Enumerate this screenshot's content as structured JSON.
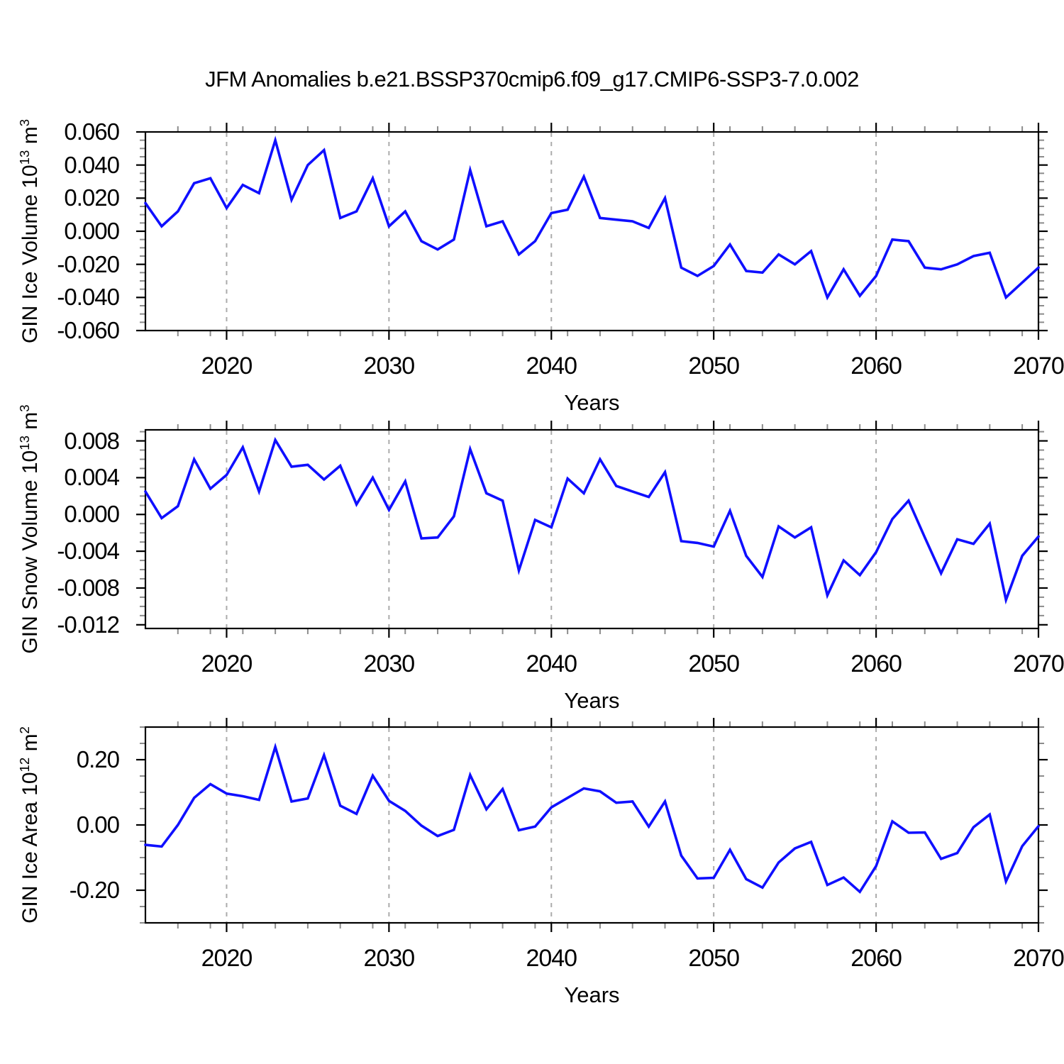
{
  "title": "JFM Anomalies b.e21.BSSP370cmip6.f09_g17.CMIP6-SSP3-7.0.002",
  "colors": {
    "line": "#0f0fff",
    "frame": "#000000",
    "gridline": "#ababab",
    "minor_tick": "#8c8c8c",
    "background": "#ffffff"
  },
  "chart_data": {
    "type": "line",
    "x_label": "Years",
    "x_range": [
      2015,
      2070
    ],
    "x_major_ticks": [
      2020,
      2030,
      2040,
      2050,
      2060,
      2070
    ],
    "x_minor_step": 2,
    "grid_years": [
      2020,
      2030,
      2040,
      2050,
      2060
    ],
    "legend": "none",
    "x": [
      2015,
      2016,
      2017,
      2018,
      2019,
      2020,
      2021,
      2022,
      2023,
      2024,
      2025,
      2026,
      2027,
      2028,
      2029,
      2030,
      2031,
      2032,
      2033,
      2034,
      2035,
      2036,
      2037,
      2038,
      2039,
      2040,
      2041,
      2042,
      2043,
      2044,
      2045,
      2046,
      2047,
      2048,
      2049,
      2050,
      2051,
      2052,
      2053,
      2054,
      2055,
      2056,
      2057,
      2058,
      2059,
      2060,
      2061,
      2062,
      2063,
      2064,
      2065,
      2066,
      2067,
      2068,
      2069,
      2070
    ],
    "panels": [
      {
        "id": "gin-ice-volume",
        "ylabel": {
          "prefix": "GIN Ice Volume 10",
          "exp": "13",
          "unit": " m",
          "unit_exp": "3"
        },
        "ylim": [
          -0.06,
          0.06
        ],
        "y_major_step": 0.02,
        "y_minor_step": 0.005,
        "yticks": [
          {
            "v": 0.06,
            "t": "0.060"
          },
          {
            "v": 0.04,
            "t": "0.040"
          },
          {
            "v": 0.02,
            "t": "0.020"
          },
          {
            "v": 0.0,
            "t": "0.000"
          },
          {
            "v": -0.02,
            "t": "-0.020"
          },
          {
            "v": -0.04,
            "t": "-0.040"
          },
          {
            "v": -0.06,
            "t": "-0.060"
          }
        ],
        "values": [
          0.017,
          0.003,
          0.012,
          0.029,
          0.032,
          0.014,
          0.028,
          0.023,
          0.055,
          0.019,
          0.04,
          0.049,
          0.008,
          0.012,
          0.032,
          0.003,
          0.012,
          -0.006,
          -0.011,
          -0.005,
          0.037,
          0.003,
          0.006,
          -0.014,
          -0.006,
          0.011,
          0.013,
          0.033,
          0.008,
          0.007,
          0.006,
          0.002,
          0.02,
          -0.022,
          -0.027,
          -0.021,
          -0.008,
          -0.024,
          -0.025,
          -0.014,
          -0.02,
          -0.012,
          -0.04,
          -0.023,
          -0.039,
          -0.027,
          -0.005,
          -0.006,
          -0.022,
          -0.023,
          -0.02,
          -0.015,
          -0.013,
          -0.04,
          -0.031,
          -0.022
        ]
      },
      {
        "id": "gin-snow-volume",
        "ylabel": {
          "prefix": "GIN Snow Volume 10",
          "exp": "13",
          "unit": " m",
          "unit_exp": "3"
        },
        "ylim": [
          -0.0124,
          0.0092
        ],
        "y_major_step": 0.004,
        "y_minor_step": 0.001,
        "yticks": [
          {
            "v": 0.008,
            "t": "0.008"
          },
          {
            "v": 0.004,
            "t": "0.004"
          },
          {
            "v": 0.0,
            "t": "0.000"
          },
          {
            "v": -0.004,
            "t": "-0.004"
          },
          {
            "v": -0.008,
            "t": "-0.008"
          },
          {
            "v": -0.012,
            "t": "-0.012"
          }
        ],
        "values": [
          0.0025,
          -0.0004,
          0.0009,
          0.006,
          0.0028,
          0.0043,
          0.0073,
          0.0025,
          0.0081,
          0.0052,
          0.0054,
          0.0038,
          0.0053,
          0.0011,
          0.004,
          0.0005,
          0.0036,
          -0.0026,
          -0.0025,
          -0.0002,
          0.0071,
          0.0023,
          0.0015,
          -0.0061,
          -0.0006,
          -0.0014,
          0.0039,
          0.0023,
          0.006,
          0.0031,
          0.0025,
          0.0019,
          0.0046,
          -0.0029,
          -0.0031,
          -0.0035,
          0.0004,
          -0.0045,
          -0.0068,
          -0.0013,
          -0.0025,
          -0.0014,
          -0.0088,
          -0.005,
          -0.0066,
          -0.0041,
          -0.0005,
          0.0015,
          -0.0025,
          -0.0064,
          -0.0027,
          -0.0032,
          -0.001,
          -0.0093,
          -0.0045,
          -0.0024
        ]
      },
      {
        "id": "gin-ice-area",
        "ylabel": {
          "prefix": "GIN Ice Area 10",
          "exp": "12",
          "unit": " m",
          "unit_exp": "2"
        },
        "ylim": [
          -0.3,
          0.3
        ],
        "y_major_step": 0.2,
        "y_minor_step": 0.05,
        "yticks": [
          {
            "v": 0.2,
            "t": "0.20"
          },
          {
            "v": 0.0,
            "t": "0.00"
          },
          {
            "v": -0.2,
            "t": "-0.20"
          }
        ],
        "values": [
          -0.061,
          -0.066,
          0.0,
          0.083,
          0.125,
          0.096,
          0.088,
          0.077,
          0.239,
          0.072,
          0.081,
          0.214,
          0.059,
          0.034,
          0.151,
          0.074,
          0.043,
          -0.002,
          -0.034,
          -0.015,
          0.153,
          0.048,
          0.11,
          -0.016,
          -0.005,
          0.054,
          0.083,
          0.112,
          0.103,
          0.068,
          0.072,
          -0.005,
          0.072,
          -0.094,
          -0.164,
          -0.162,
          -0.076,
          -0.166,
          -0.192,
          -0.115,
          -0.072,
          -0.052,
          -0.184,
          -0.161,
          -0.205,
          -0.126,
          0.011,
          -0.024,
          -0.023,
          -0.104,
          -0.086,
          -0.007,
          0.032,
          -0.173,
          -0.065,
          -0.004
        ]
      }
    ]
  }
}
